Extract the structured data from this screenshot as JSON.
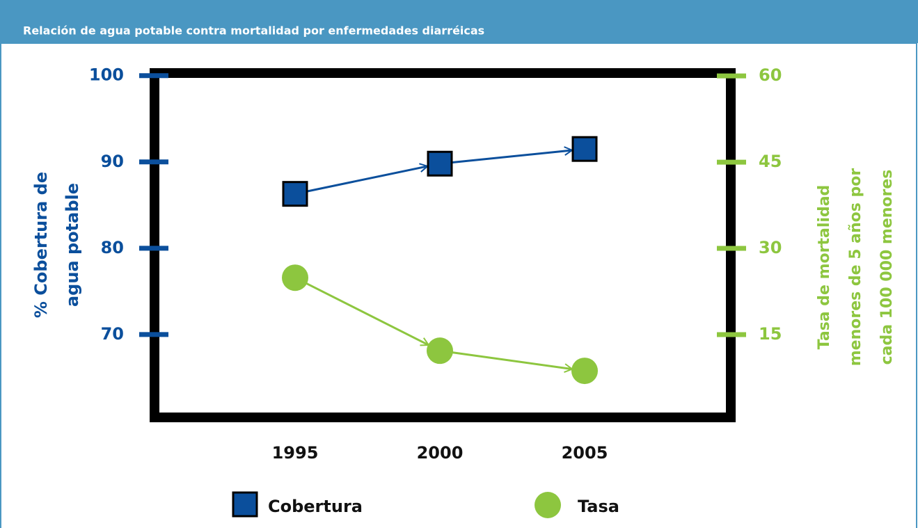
{
  "chart_data": {
    "type": "line",
    "title": "Relación de agua potable contra mortalidad por enfermedades diarréicas",
    "categories": [
      "1995",
      "2000",
      "2005"
    ],
    "series": [
      {
        "name": "Cobertura",
        "color": "#0b4f9c",
        "values": [
          86.3,
          89.8,
          91.5
        ],
        "marker": "square"
      },
      {
        "name": "Tasa",
        "color": "#8dc63f",
        "values": [
          24.9,
          12.2,
          8.7
        ],
        "axis": "y2",
        "marker": "circle"
      }
    ],
    "y_label": [
      "% Cobertura de",
      "agua potable"
    ],
    "y2_label": [
      "Tasa de mortalidad",
      "menores de 5 años por",
      "cada 100 000 menores"
    ],
    "ylim": [
      60.4,
      100.3
    ],
    "yticks": [
      70,
      80,
      90,
      100
    ],
    "y2lim": [
      0.6,
      60.5
    ],
    "y2ticks": [
      15,
      30,
      45,
      60
    ],
    "grid": false
  }
}
